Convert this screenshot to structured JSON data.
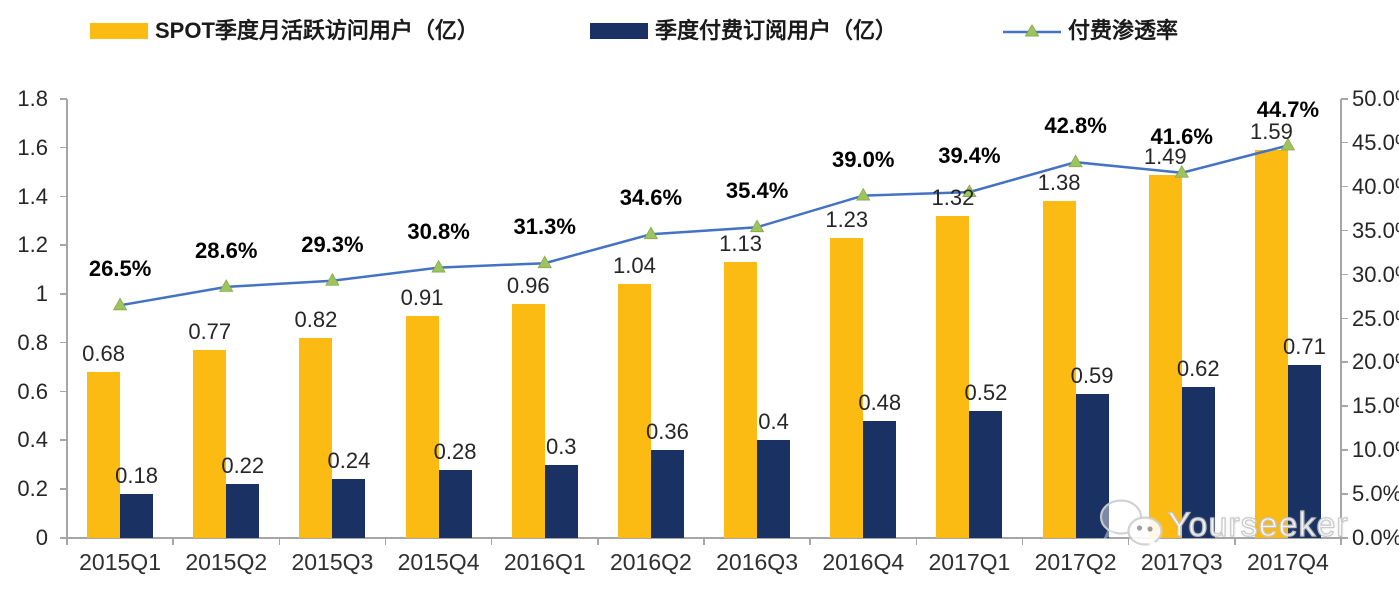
{
  "legend": {
    "items": [
      {
        "label": "SPOT季度月活跃访问用户（亿）",
        "color": "#FCBB13"
      },
      {
        "label": "季度付费订阅用户（亿）",
        "color": "#1A3263"
      },
      {
        "label": "付费渗透率",
        "color": "#4472C4",
        "marker_color": "#9DC45E"
      }
    ]
  },
  "watermark": {
    "text": "Yourseeker",
    "icon": "wechat-icon"
  },
  "chart_data": {
    "type": "combo bar+line",
    "title": "",
    "categories": [
      "2015Q1",
      "2015Q2",
      "2015Q3",
      "2015Q4",
      "2016Q1",
      "2016Q2",
      "2016Q3",
      "2016Q4",
      "2017Q1",
      "2017Q2",
      "2017Q3",
      "2017Q4"
    ],
    "series": [
      {
        "name": "SPOT季度月活跃访问用户（亿）",
        "type": "bar",
        "axis": "left",
        "color": "#FCBB13",
        "values": [
          0.68,
          0.77,
          0.82,
          0.91,
          0.96,
          1.04,
          1.13,
          1.23,
          1.32,
          1.38,
          1.49,
          1.59
        ],
        "labels": [
          "0.68",
          "0.77",
          "0.82",
          "0.91",
          "0.96",
          "1.04",
          "1.13",
          "1.23",
          "1.32",
          "1.38",
          "1.49",
          "1.59"
        ]
      },
      {
        "name": "季度付费订阅用户（亿）",
        "type": "bar",
        "axis": "left",
        "color": "#1A3263",
        "values": [
          0.18,
          0.22,
          0.24,
          0.28,
          0.3,
          0.36,
          0.4,
          0.48,
          0.52,
          0.59,
          0.62,
          0.71
        ],
        "labels": [
          "0.18",
          "0.22",
          "0.24",
          "0.28",
          "0.3",
          "0.36",
          "0.4",
          "0.48",
          "0.52",
          "0.59",
          "0.62",
          "0.71"
        ]
      },
      {
        "name": "付费渗透率",
        "type": "line",
        "axis": "right",
        "color": "#4472C4",
        "marker": "triangle",
        "marker_color": "#9DC45E",
        "values": [
          26.5,
          28.6,
          29.3,
          30.8,
          31.3,
          34.6,
          35.4,
          39.0,
          39.4,
          42.8,
          41.6,
          44.7
        ],
        "labels": [
          "26.5%",
          "28.6%",
          "29.3%",
          "30.8%",
          "31.3%",
          "34.6%",
          "35.4%",
          "39.0%",
          "39.4%",
          "42.8%",
          "41.6%",
          "44.7%"
        ]
      }
    ],
    "left_axis": {
      "min": 0,
      "max": 1.8,
      "step": 0.2,
      "ticks": [
        "0",
        "0.2",
        "0.4",
        "0.6",
        "0.8",
        "1",
        "1.2",
        "1.4",
        "1.6",
        "1.8"
      ]
    },
    "right_axis": {
      "min": 0,
      "max": 50,
      "step": 5,
      "ticks": [
        "0.0%",
        "5.0%",
        "10.0%",
        "15.0%",
        "20.0%",
        "25.0%",
        "30.0%",
        "35.0%",
        "40.0%",
        "45.0%",
        "50.0%"
      ]
    },
    "grid": false,
    "legend_position": "top"
  }
}
